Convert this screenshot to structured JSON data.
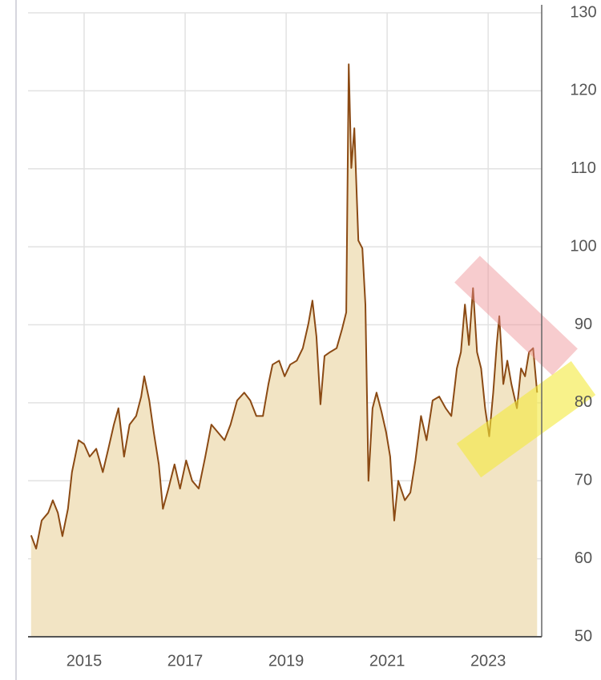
{
  "chart_data": {
    "type": "area",
    "x": [
      2013.95,
      2014.05,
      2014.16,
      2014.29,
      2014.38,
      2014.48,
      2014.57,
      2014.68,
      2014.76,
      2014.89,
      2015.0,
      2015.11,
      2015.24,
      2015.37,
      2015.48,
      2015.59,
      2015.68,
      2015.79,
      2015.9,
      2016.03,
      2016.13,
      2016.19,
      2016.29,
      2016.38,
      2016.48,
      2016.56,
      2016.67,
      2016.79,
      2016.9,
      2017.02,
      2017.14,
      2017.27,
      2017.4,
      2017.52,
      2017.65,
      2017.78,
      2017.9,
      2018.03,
      2018.17,
      2018.29,
      2018.41,
      2018.54,
      2018.65,
      2018.73,
      2018.86,
      2018.97,
      2019.08,
      2019.21,
      2019.33,
      2019.44,
      2019.52,
      2019.6,
      2019.68,
      2019.76,
      2019.87,
      2020.0,
      2020.11,
      2020.19,
      2020.24,
      2020.29,
      2020.35,
      2020.43,
      2020.51,
      2020.57,
      2020.63,
      2020.71,
      2020.79,
      2020.89,
      2020.98,
      2021.06,
      2021.14,
      2021.22,
      2021.35,
      2021.46,
      2021.56,
      2021.67,
      2021.78,
      2021.9,
      2022.03,
      2022.16,
      2022.27,
      2022.38,
      2022.46,
      2022.54,
      2022.62,
      2022.7,
      2022.78,
      2022.86,
      2022.94,
      2023.02,
      2023.1,
      2023.17,
      2023.22,
      2023.3,
      2023.38,
      2023.46,
      2023.57,
      2023.65,
      2023.73,
      2023.81,
      2023.89,
      2023.97
    ],
    "values": [
      63.0,
      61.3,
      64.9,
      65.9,
      67.5,
      65.9,
      62.9,
      66.4,
      71.1,
      75.2,
      74.7,
      73.1,
      74.1,
      71.1,
      74.1,
      77.2,
      79.3,
      73.1,
      77.2,
      78.3,
      80.8,
      83.4,
      80.3,
      76.2,
      72.1,
      66.4,
      69.0,
      72.1,
      69.0,
      72.6,
      70.0,
      69.0,
      73.1,
      77.2,
      76.2,
      75.2,
      77.2,
      80.3,
      81.3,
      80.3,
      78.3,
      78.3,
      82.4,
      84.9,
      85.4,
      83.4,
      84.9,
      85.4,
      87.0,
      90.1,
      93.1,
      88.5,
      79.8,
      86.0,
      86.5,
      87.0,
      89.5,
      91.6,
      123.4,
      110.1,
      115.2,
      100.8,
      99.8,
      92.6,
      70.0,
      79.3,
      81.3,
      78.8,
      76.2,
      73.1,
      64.9,
      70.0,
      67.5,
      68.5,
      72.6,
      78.3,
      75.2,
      80.3,
      80.8,
      79.3,
      78.3,
      84.4,
      86.5,
      92.6,
      87.4,
      94.7,
      86.5,
      84.4,
      79.3,
      75.7,
      81.3,
      87.5,
      91.1,
      82.4,
      85.4,
      82.4,
      79.3,
      84.4,
      83.4,
      86.5,
      87.0,
      81.3
    ],
    "color": "#8b4a14",
    "fill_color": "#f2e4c4",
    "xlim": [
      2013.89,
      2024.06
    ],
    "xticks": [
      2015,
      2017,
      2019,
      2021,
      2023
    ],
    "ylim": [
      50,
      130
    ],
    "yticks": [
      50,
      60,
      70,
      80,
      90,
      100,
      110,
      120,
      130
    ],
    "grid": true,
    "y_axis_side": "right"
  }
}
